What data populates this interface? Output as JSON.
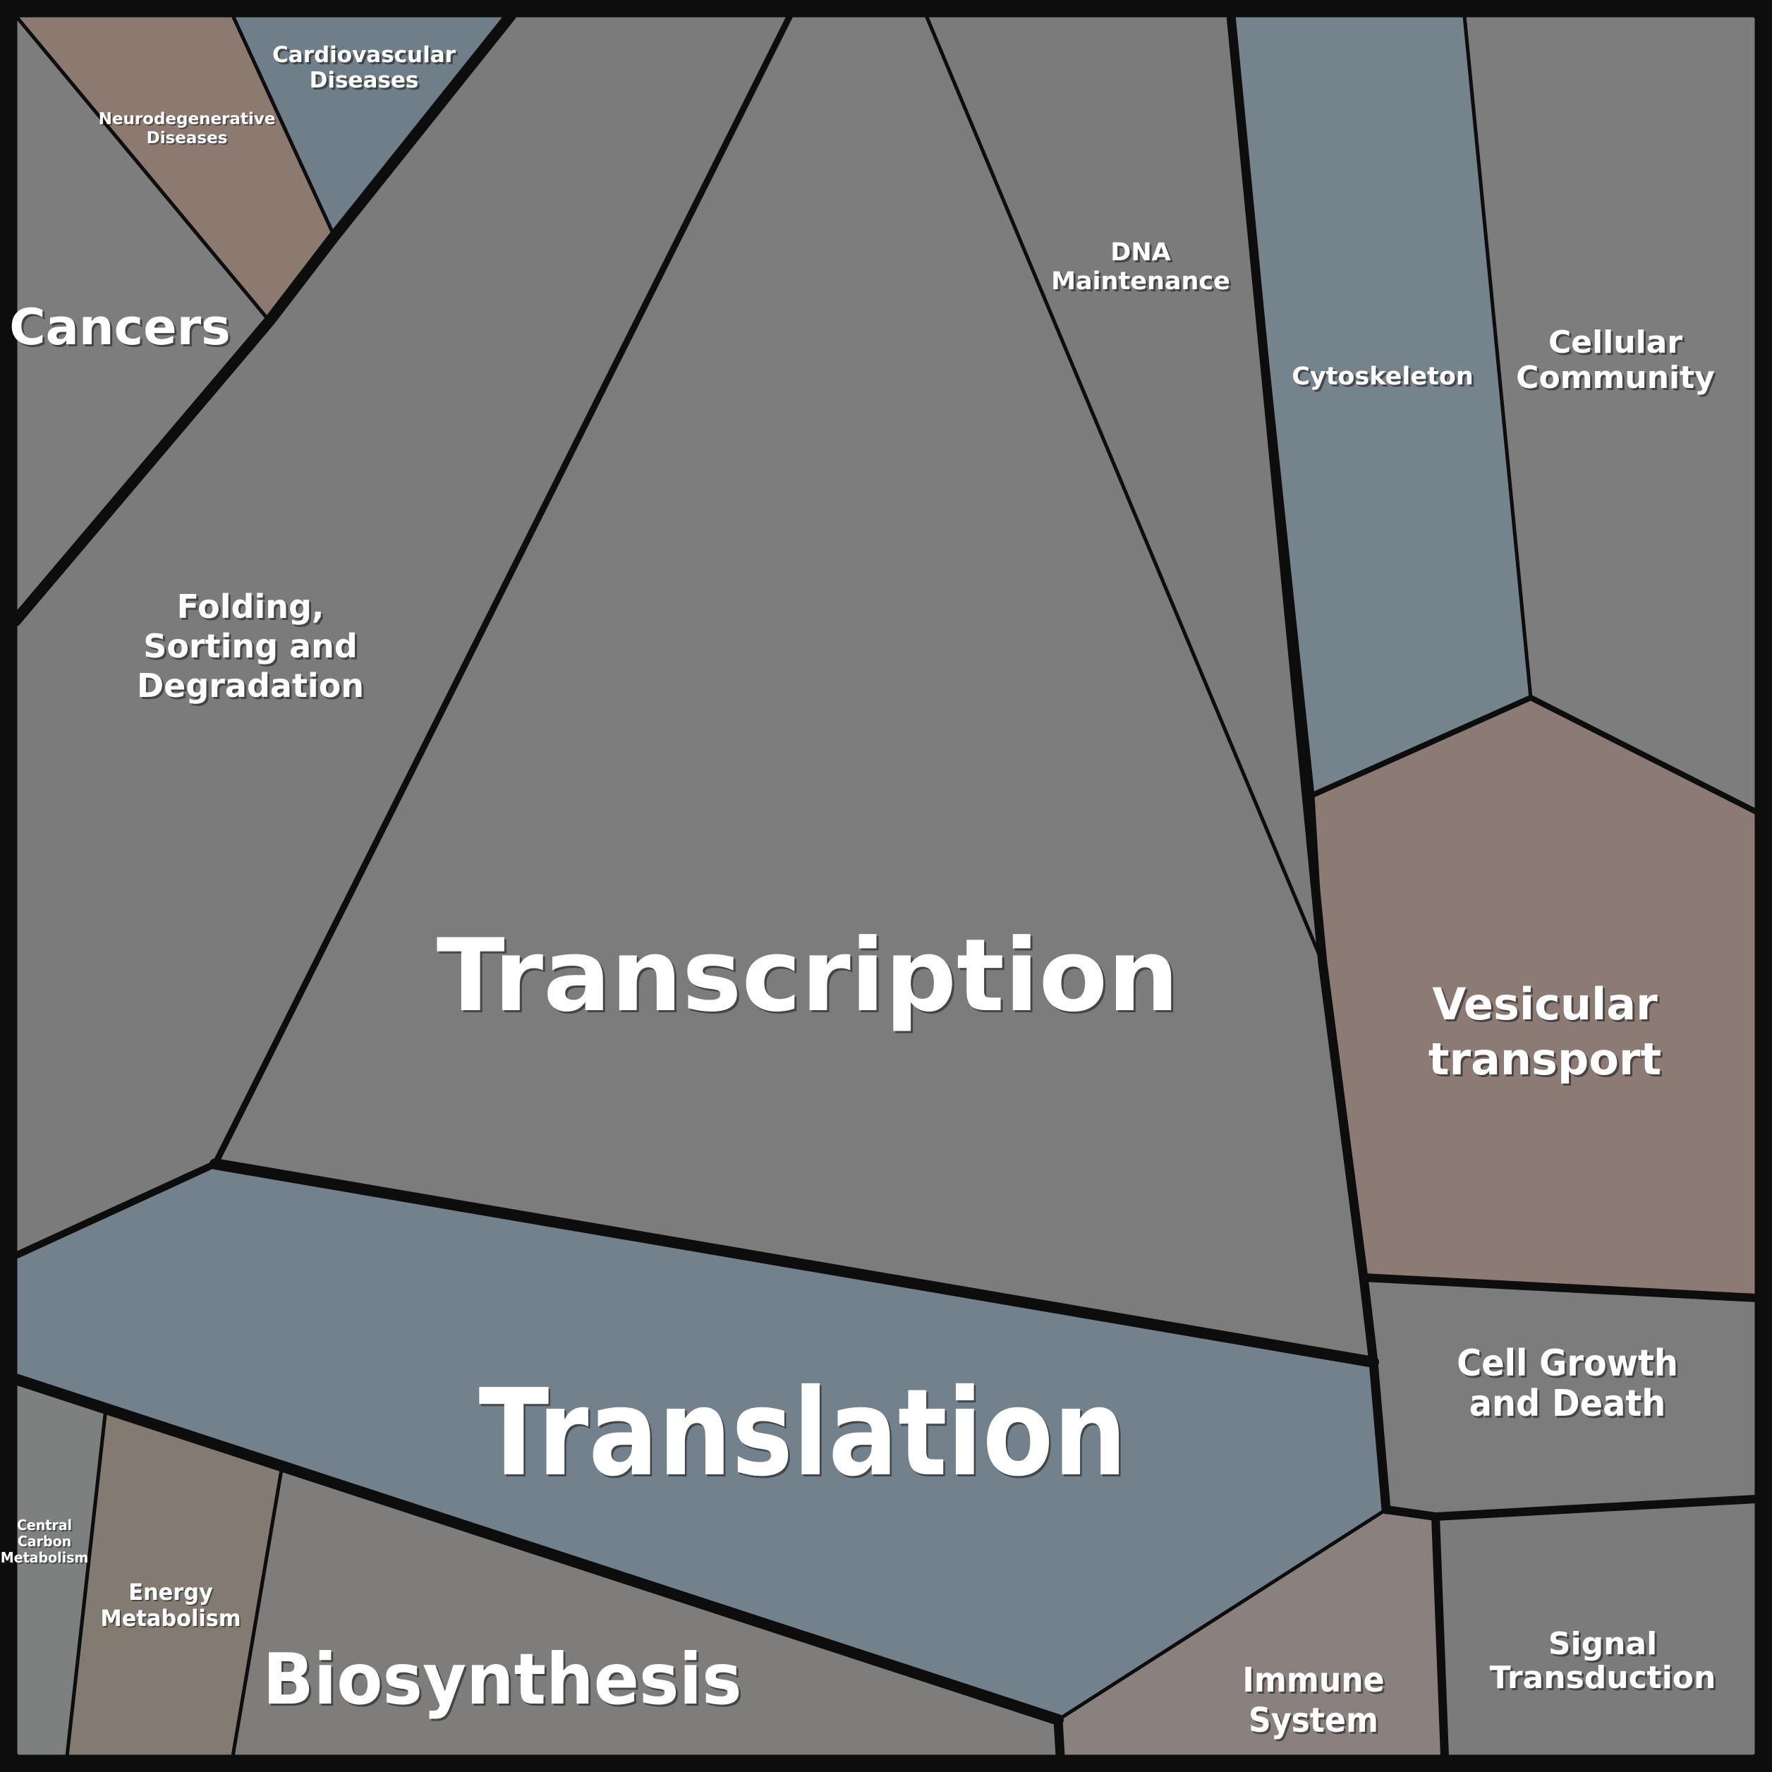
{
  "frame": {
    "background": "#0d0d0d",
    "line_color": "#0d0d0d"
  },
  "regions": {
    "transcription": {
      "label_lines": [
        "Transcription"
      ],
      "color": "#7c7c7c",
      "area_pct": 28.7
    },
    "translation": {
      "label_lines": [
        "Translation"
      ],
      "color": "#72818c",
      "area_pct": 13.9
    },
    "folding": {
      "label_lines": [
        "Folding,",
        "Sorting and",
        "Degradation"
      ],
      "color": "#7b7b7b",
      "area_pct": 13.7
    },
    "vesicular_transport": {
      "label_lines": [
        "Vesicular",
        "transport"
      ],
      "color": "#8c7a74",
      "area_pct": 7.5
    },
    "cellular_community": {
      "label_lines": [
        "Cellular",
        "Community"
      ],
      "color": "#7d7d7d",
      "area_pct": 6.3
    },
    "cytoskeleton": {
      "label_lines": [
        "Cytoskeleton"
      ],
      "color": "#75838d",
      "area_pct": 5.6
    },
    "dna_maintenance": {
      "label_lines": [
        "DNA",
        "Maintenance"
      ],
      "color": "#7b7b7b",
      "area_pct": 4.8
    },
    "biosynthesis": {
      "label_lines": [
        "Biosynthesis"
      ],
      "color": "#7e7d7b",
      "area_pct": 4.4
    },
    "cell_growth_and_death": {
      "label_lines": [
        "Cell Growth",
        "and Death"
      ],
      "color": "#7c7c7c",
      "area_pct": 2.8
    },
    "signal_transduction": {
      "label_lines": [
        "Signal",
        "Transduction"
      ],
      "color": "#7b7b7b",
      "area_pct": 2.6
    },
    "cancers": {
      "label_lines": [
        "Cancers"
      ],
      "color": "#7d7d7d",
      "area_pct": 2.5
    },
    "immune_system": {
      "label_lines": [
        "Immune",
        "System"
      ],
      "color": "#8a817e",
      "area_pct": 2.0
    },
    "energy_metabolism": {
      "label_lines": [
        "Energy",
        "Metabolism"
      ],
      "color": "#837a72",
      "area_pct": 1.8
    },
    "neurodegenerative_diseases": {
      "label_lines": [
        "Neurodegenerative",
        "Diseases"
      ],
      "color": "#8c7a71",
      "area_pct": 1.5
    },
    "cardiovascular_diseases": {
      "label_lines": [
        "Cardiovascular",
        "Diseases"
      ],
      "color": "#6f7e88",
      "area_pct": 1.0
    },
    "central_carbon_metabolism": {
      "label_lines": [
        "Central",
        "Carbon",
        "Metabolism"
      ],
      "color": "#7d807e",
      "area_pct": 0.9
    }
  },
  "chart_data": {
    "type": "treemap",
    "title": "",
    "categories": [
      "Transcription",
      "Translation",
      "Folding, Sorting and Degradation",
      "Vesicular transport",
      "Cellular Community",
      "Cytoskeleton",
      "DNA Maintenance",
      "Biosynthesis",
      "Cell Growth and Death",
      "Signal Transduction",
      "Cancers",
      "Immune System",
      "Energy Metabolism",
      "Neurodegenerative Diseases",
      "Cardiovascular Diseases",
      "Central Carbon Metabolism"
    ],
    "values": [
      28.7,
      13.9,
      13.7,
      7.5,
      6.3,
      5.6,
      4.8,
      4.4,
      2.8,
      2.6,
      2.5,
      2.0,
      1.8,
      1.5,
      1.0,
      0.9
    ],
    "value_unit": "percent of total area",
    "colors": [
      "#7c7c7c",
      "#72818c",
      "#7b7b7b",
      "#8c7a74",
      "#7d7d7d",
      "#75838d",
      "#7b7b7b",
      "#7e7d7b",
      "#7c7c7c",
      "#7b7b7b",
      "#7d7d7d",
      "#8a817e",
      "#837a72",
      "#8c7a71",
      "#6f7e88",
      "#7d807e"
    ],
    "legend": "none",
    "layout": "voronoi-treemap, polygonal cells, cell area proportional to value, thick black borders between top-level groups"
  }
}
